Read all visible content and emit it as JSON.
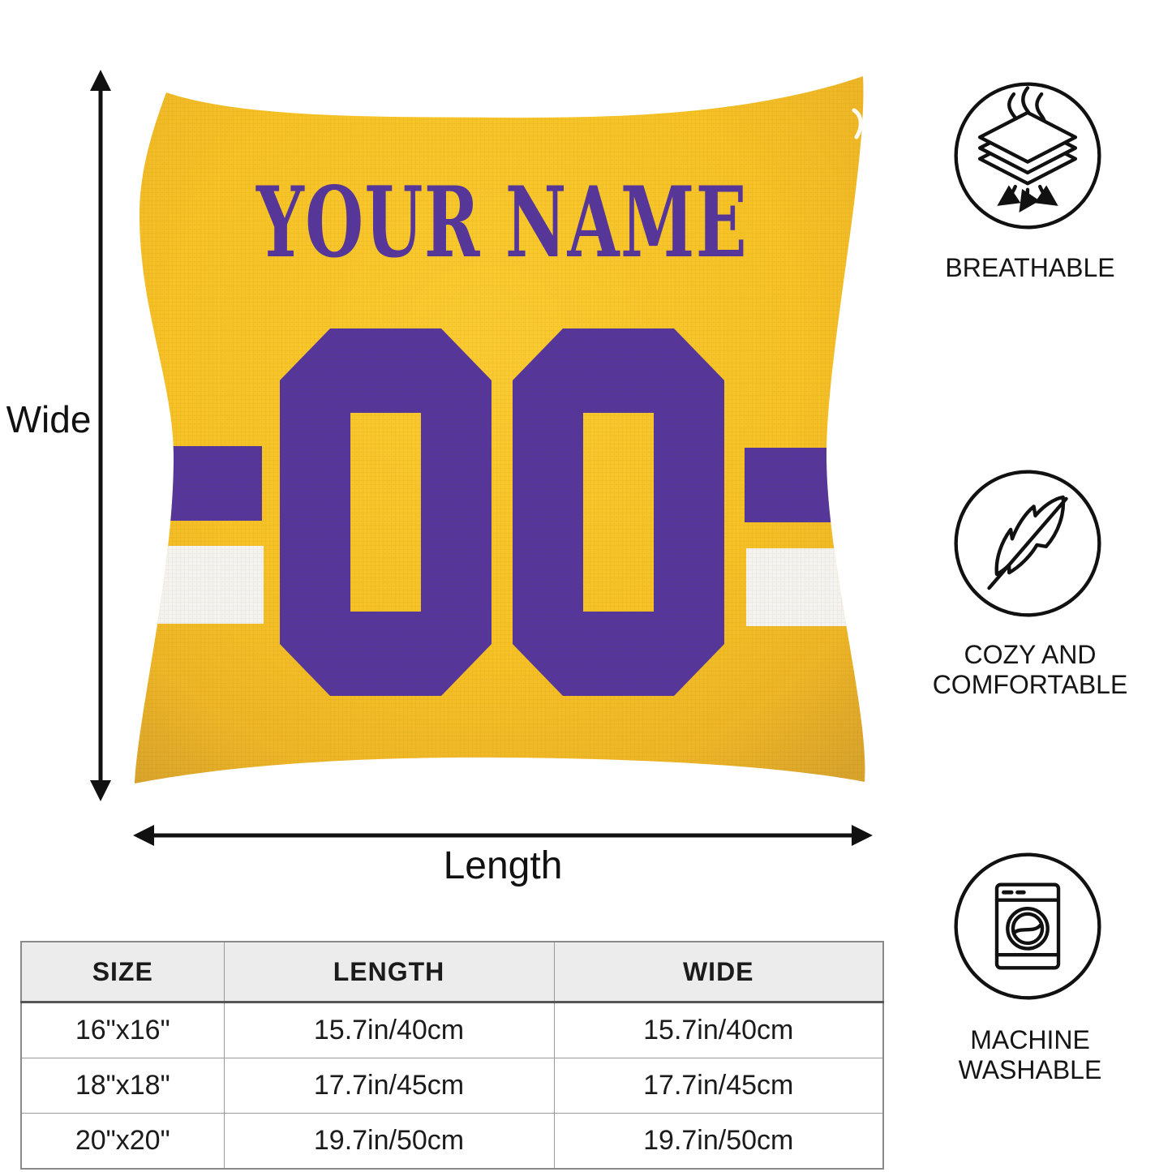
{
  "pillow": {
    "name_text": "YOUR NAME",
    "number_text": "00",
    "colors": {
      "fabric_yellow": "#F6C226",
      "fabric_highlight": "#FACB31",
      "fabric_shadow": "#D9A42C",
      "print_purple": "#55369B",
      "stripe_white": "#F4F3F0"
    }
  },
  "dimensions": {
    "vertical_label": "Wide",
    "horizontal_label": "Length"
  },
  "features": [
    {
      "icon": "breathable-layers-icon",
      "lines": [
        "BREATHABLE"
      ]
    },
    {
      "icon": "feather-icon",
      "lines": [
        "COZY AND",
        "COMFORTABLE"
      ]
    },
    {
      "icon": "washing-machine-icon",
      "lines": [
        "MACHINE",
        "WASHABLE"
      ]
    }
  ],
  "size_table": {
    "headers": [
      "SIZE",
      "LENGTH",
      "WIDE"
    ],
    "rows": [
      [
        "16\"x16\"",
        "15.7in/40cm",
        "15.7in/40cm"
      ],
      [
        "18\"x18\"",
        "17.7in/45cm",
        "17.7in/45cm"
      ],
      [
        "20\"x20\"",
        "19.7in/50cm",
        "19.7in/50cm"
      ]
    ]
  }
}
